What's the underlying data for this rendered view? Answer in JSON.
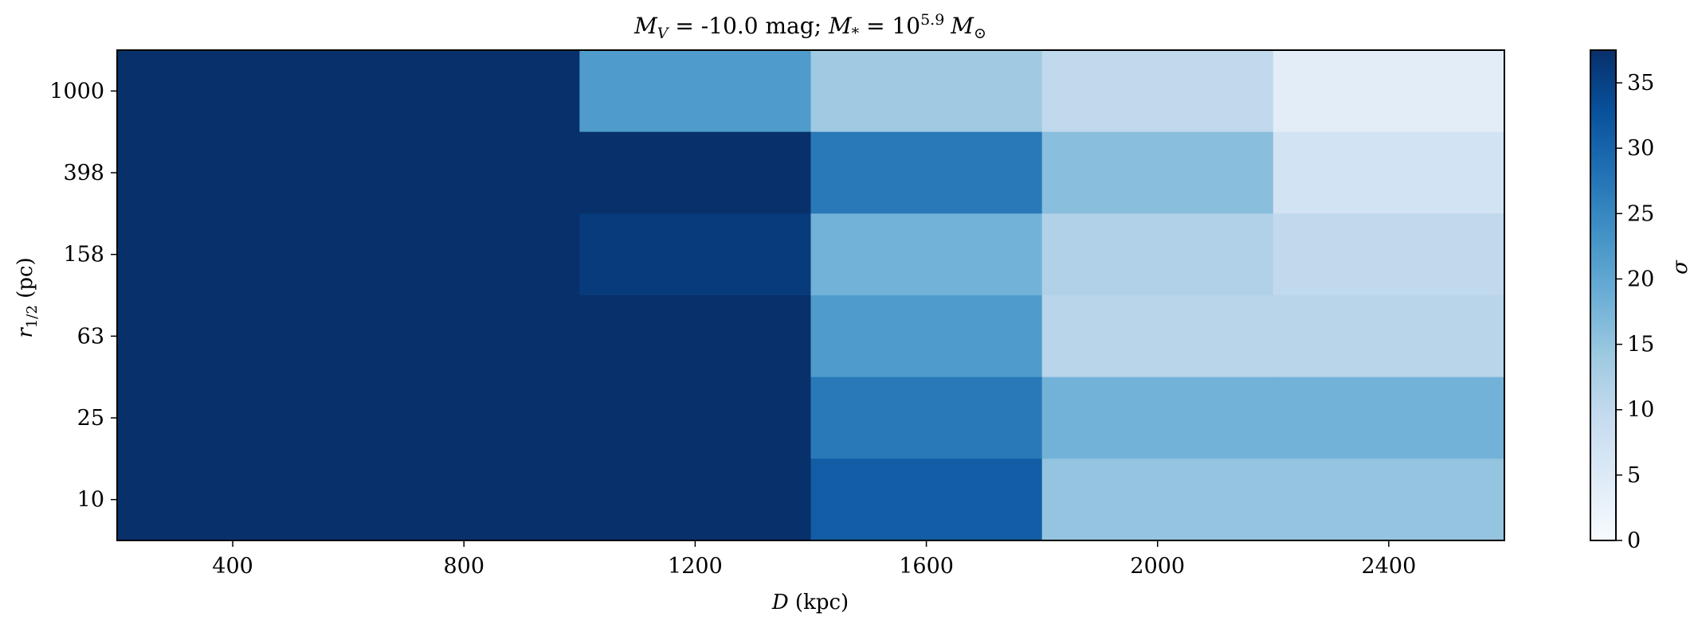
{
  "chart_data": {
    "type": "heatmap",
    "title": {
      "mv_symbol": "M",
      "mv_sub": "V",
      "mv_text": " = -10.0 mag; ",
      "mstar_symbol": "M",
      "mstar_sub": "*",
      "mstar_eq": " = 10",
      "mstar_exp": "5.9",
      "msun_symbol": "M",
      "msun_sub": "⊙"
    },
    "xlabel": {
      "symbol": "D",
      "unit": " (kpc)"
    },
    "ylabel": {
      "symbol": "r",
      "sub": "1/2",
      "unit": " (pc)"
    },
    "x_ticks": [
      400,
      800,
      1200,
      1600,
      2000,
      2400
    ],
    "xlim": [
      200,
      2600
    ],
    "x_edges": [
      200,
      600,
      1000,
      1400,
      1800,
      2200,
      2600
    ],
    "y_categories": [
      "1000",
      "398",
      "158",
      "63",
      "25",
      "10"
    ],
    "values": [
      [
        37.5,
        37.5,
        22,
        14,
        10,
        4
      ],
      [
        37.5,
        37.5,
        37.5,
        27,
        16,
        7
      ],
      [
        37.5,
        37.5,
        36,
        18,
        12,
        10
      ],
      [
        37.5,
        37.5,
        37.5,
        22,
        11,
        11
      ],
      [
        37.5,
        37.5,
        37.5,
        27,
        18,
        18
      ],
      [
        37.5,
        37.5,
        37.5,
        31,
        15,
        15
      ]
    ],
    "colorbar": {
      "label": "σ",
      "min": 0,
      "max": 37.5,
      "ticks": [
        0,
        5,
        10,
        15,
        20,
        25,
        30,
        35
      ],
      "colormap": "Blues"
    },
    "grid": false
  }
}
